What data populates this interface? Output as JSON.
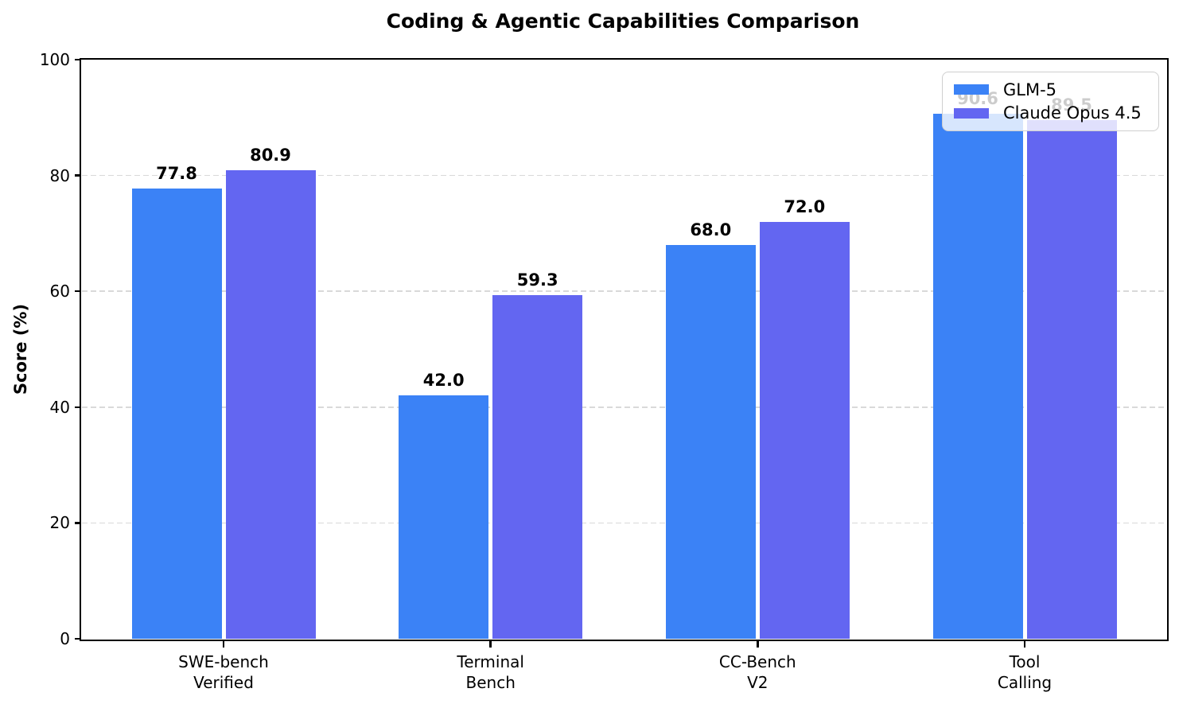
{
  "chart_data": {
    "type": "bar",
    "title": "Coding & Agentic Capabilities Comparison",
    "ylabel": "Score (%)",
    "xlabel": "",
    "categories": [
      [
        "SWE-bench",
        "Verified"
      ],
      [
        "Terminal",
        "Bench"
      ],
      [
        "CC-Bench",
        "V2"
      ],
      [
        "Tool",
        "Calling"
      ]
    ],
    "series": [
      {
        "name": "GLM-5",
        "color": "#3b82f6",
        "values": [
          77.8,
          42.0,
          68.0,
          90.6
        ]
      },
      {
        "name": "Claude Opus 4.5",
        "color": "#6366f1",
        "values": [
          80.9,
          59.3,
          72.0,
          89.5
        ]
      }
    ],
    "ylim": [
      0,
      100
    ],
    "yticks": [
      0,
      20,
      40,
      60,
      80,
      100
    ],
    "grid": "horizontal-dashed",
    "gridline_color": "#d9d9d9",
    "legend_position": "upper-right",
    "value_labels_decimals": 1,
    "frame": "full-box"
  }
}
